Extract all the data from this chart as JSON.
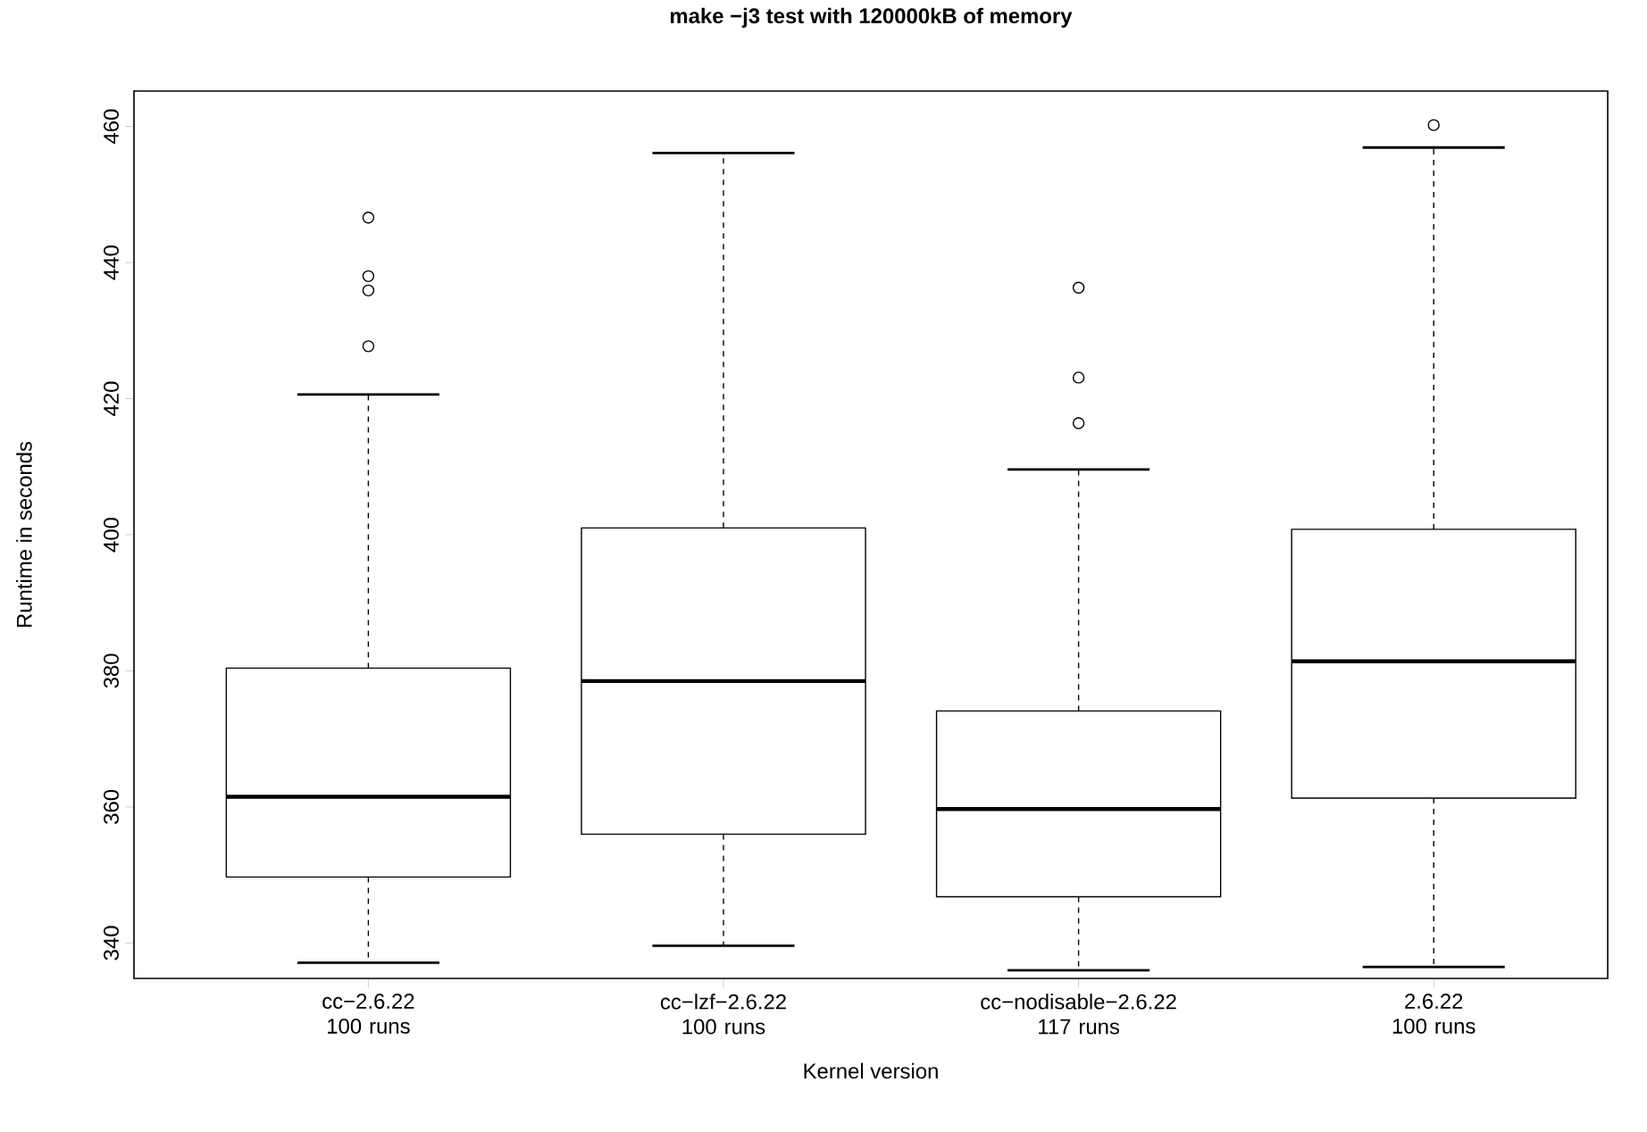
{
  "chart_data": {
    "type": "box",
    "title": "make −j3 test with 120000kB of memory",
    "xlabel": "Kernel version",
    "ylabel": "Runtime in seconds",
    "categories": [
      "cc−2.6.22 100 runs",
      "cc−lzf−2.6.22 100 runs",
      "cc−nodisable−2.6.22 117 runs",
      "2.6.22 100 runs"
    ],
    "boxes": [
      {
        "low": 337.1,
        "q1": 349.7,
        "median": 361.5,
        "q3": 380.4,
        "high": 420.6,
        "outliers": [
          427.7,
          435.9,
          438.0,
          446.6
        ]
      },
      {
        "low": 339.6,
        "q1": 356.0,
        "median": 378.5,
        "q3": 401.0,
        "high": 456.1
      },
      {
        "low": 336.0,
        "q1": 346.8,
        "median": 359.7,
        "q3": 374.1,
        "high": 409.6,
        "outliers": [
          416.4,
          423.1,
          436.3
        ]
      },
      {
        "low": 336.5,
        "q1": 361.3,
        "median": 381.4,
        "q3": 400.8,
        "high": 456.9,
        "outliers": [
          460.2
        ]
      }
    ],
    "ylim": [
      334.8,
      465.2
    ],
    "yticks": [
      340,
      360,
      380,
      400,
      420,
      440,
      460
    ],
    "grid": false
  }
}
